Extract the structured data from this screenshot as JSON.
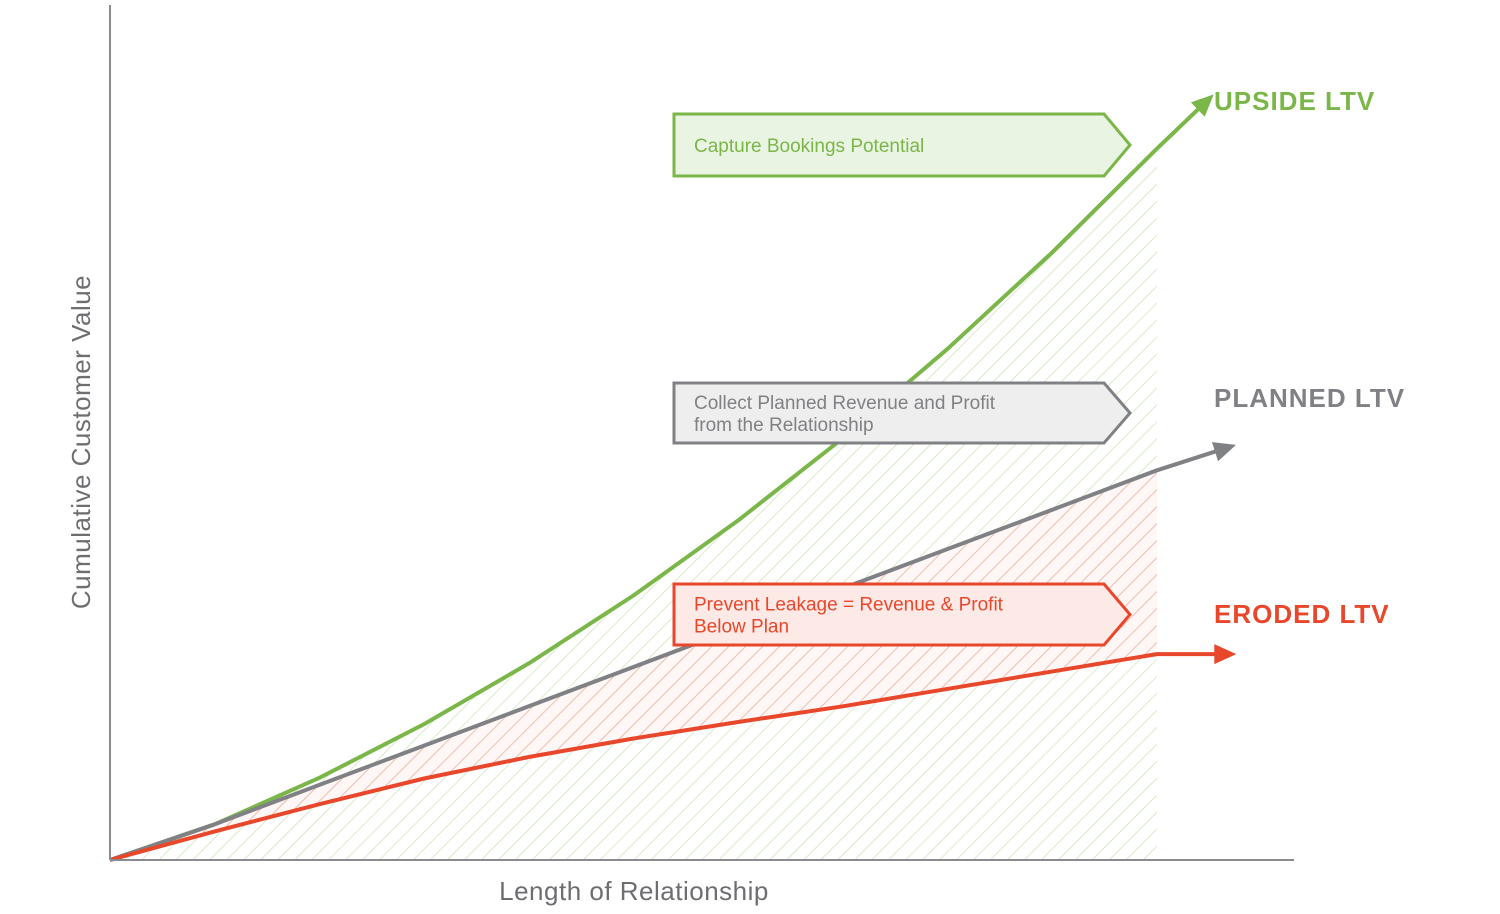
{
  "colors": {
    "upside": "#7ab648",
    "planned": "#808184",
    "eroded": "#e8472b",
    "axis": "#8a8b8e",
    "upside_fill": "#eaf4e2",
    "planned_fill": "#eeeeee",
    "eroded_fill": "#fde9e6"
  },
  "chart_data": {
    "type": "line",
    "title": "",
    "xlabel": "Length of Relationship",
    "ylabel": "Cumulative Customer Value",
    "x_ticks": false,
    "y_ticks": false,
    "grid": false,
    "xlim": [
      0,
      100
    ],
    "ylim": [
      0,
      100
    ],
    "series": [
      {
        "name": "UPSIDE LTV",
        "key": "upside",
        "x": [
          0,
          10,
          20,
          30,
          40,
          50,
          60,
          70,
          80,
          90,
          100,
          105
        ],
        "y": [
          0,
          5,
          11.5,
          19,
          27.5,
          37,
          47.5,
          59,
          71.5,
          85,
          99.5,
          106.5
        ]
      },
      {
        "name": "PLANNED LTV",
        "key": "planned",
        "x": [
          0,
          10,
          20,
          30,
          40,
          50,
          60,
          70,
          80,
          90,
          100,
          107
        ],
        "y": [
          0,
          5,
          10.5,
          16,
          21.5,
          27,
          32.5,
          38,
          43.5,
          49,
          54.5,
          57.8
        ]
      },
      {
        "name": "ERODED LTV",
        "key": "eroded",
        "x": [
          0,
          10,
          20,
          30,
          40,
          50,
          60,
          70,
          100,
          107
        ],
        "y": [
          0,
          4,
          7.8,
          11.4,
          14.4,
          17,
          19.3,
          21.5,
          28.8,
          28.8
        ]
      }
    ],
    "shaded_regions": [
      {
        "between": [
          "upside",
          "axis"
        ],
        "x_end": 100,
        "hatch_color": "#c6dfae"
      },
      {
        "between": [
          "planned",
          "eroded"
        ],
        "x_end": 100,
        "hatch_color": "#f1a79a"
      }
    ],
    "annotations": [
      {
        "key": "upside",
        "text": [
          "Capture Bookings Potential"
        ]
      },
      {
        "key": "planned",
        "text": [
          "Collect Planned Revenue and Profit",
          "from the Relationship"
        ]
      },
      {
        "key": "eroded",
        "text": [
          "Prevent Leakage = Revenue & Profit",
          "Below Plan"
        ]
      }
    ]
  }
}
